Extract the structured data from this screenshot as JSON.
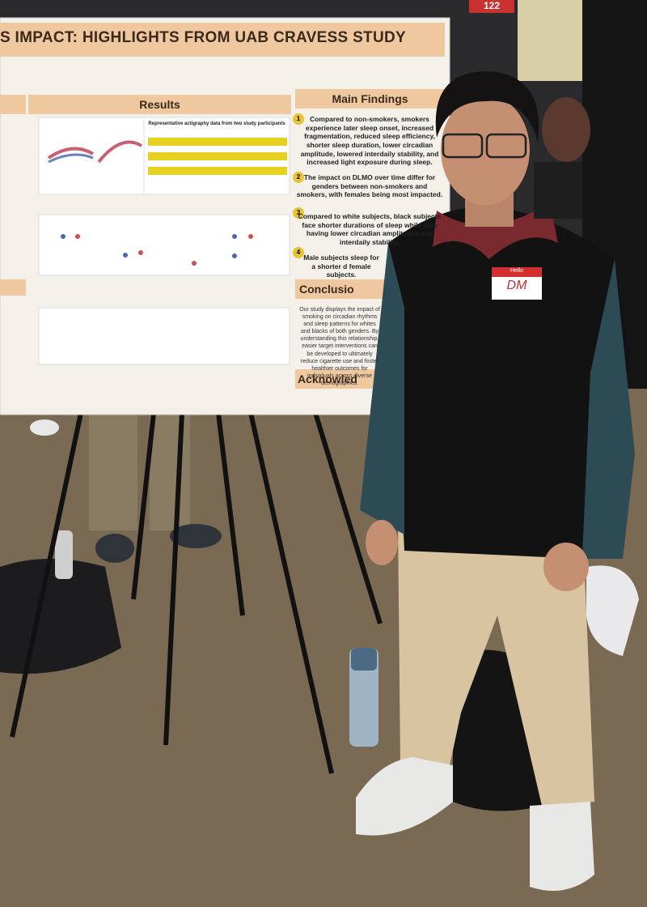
{
  "sign": "122",
  "poster": {
    "title": "S IMPACT: HIGHLIGHTS FROM UAB CRAVESS STUDY",
    "results_heading": "Results",
    "figure_caption": "Representative actigraphy data from two study participants",
    "main_findings": {
      "heading": "Main Findings",
      "items": [
        {
          "number": "1",
          "text": "Compared to non-smokers, smokers experience later sleep onset, increased fragmentation, reduced sleep efficiency, shorter sleep duration, lower circadian amplitude, lowered interdaily stability, and increased light exposure during sleep."
        },
        {
          "number": "2",
          "text": "The impact on DLMO over time differ for genders between non-smokers and smokers, with females being most impacted."
        },
        {
          "number": "3",
          "text": "Compared to white subjects, black subjects face shorter durations of sleep while also having lower circadian amplitudes and interdaily stability."
        },
        {
          "number": "4",
          "text": "Male subjects sleep for a shorter d female subjects."
        }
      ]
    },
    "conclusion": {
      "heading": "Conclusio",
      "text": "Our study displays the impact of smoking on circadian rhythms and sleep patterns for whites and blacks of both genders. By understanding this relationship, easier target interventions can be developed to ultimately reduce cigarette use and foster healthier outcomes for individuals across diverse demographics."
    },
    "acknowledgments_heading": "Acknowled"
  },
  "name_tag": {
    "greeting": "Hello",
    "initials": "DM"
  }
}
